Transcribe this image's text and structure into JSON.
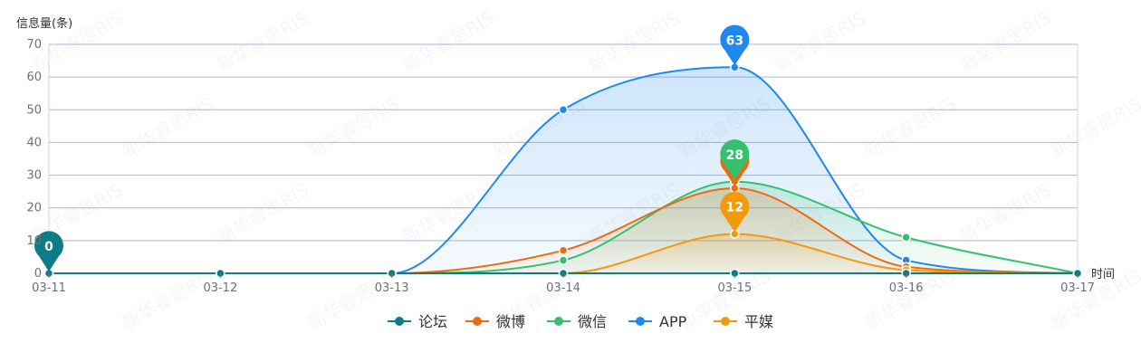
{
  "chart_data": {
    "type": "line",
    "ylabel": "信息量(条)",
    "xlabel": "时间",
    "categories": [
      "03-11",
      "03-12",
      "03-13",
      "03-14",
      "03-15",
      "03-16",
      "03-17"
    ],
    "ylim": [
      0,
      70
    ],
    "yticks": [
      0,
      10,
      20,
      30,
      40,
      50,
      60,
      70
    ],
    "grid": true,
    "smooth": true,
    "legend_position": "bottom-center",
    "series": [
      {
        "name": "论坛",
        "color": "#0e7c86",
        "values": [
          0,
          0,
          0,
          0,
          0,
          0,
          0
        ],
        "area": false
      },
      {
        "name": "微博",
        "color": "#ee6a0f",
        "values": [
          0,
          0,
          0,
          7,
          26,
          2,
          0
        ],
        "area": true
      },
      {
        "name": "微信",
        "color": "#34c06e",
        "values": [
          0,
          0,
          0,
          4,
          28,
          11,
          0
        ],
        "area": true
      },
      {
        "name": "APP",
        "color": "#1e88f0",
        "values": [
          0,
          0,
          0,
          50,
          63,
          4,
          0
        ],
        "area": true
      },
      {
        "name": "平媒",
        "color": "#f09a0f",
        "values": [
          0,
          0,
          0,
          0,
          12,
          1,
          0
        ],
        "area": true
      }
    ],
    "markers": [
      {
        "series": "论坛",
        "category": "03-11",
        "label": "0"
      },
      {
        "series": "微博",
        "category": "03-15",
        "label": ""
      },
      {
        "series": "微信",
        "category": "03-15",
        "label": "28"
      },
      {
        "series": "平媒",
        "category": "03-15",
        "label": "12"
      },
      {
        "series": "APP",
        "category": "03-15",
        "label": "63"
      }
    ],
    "watermark": "新华睿思RIS"
  }
}
